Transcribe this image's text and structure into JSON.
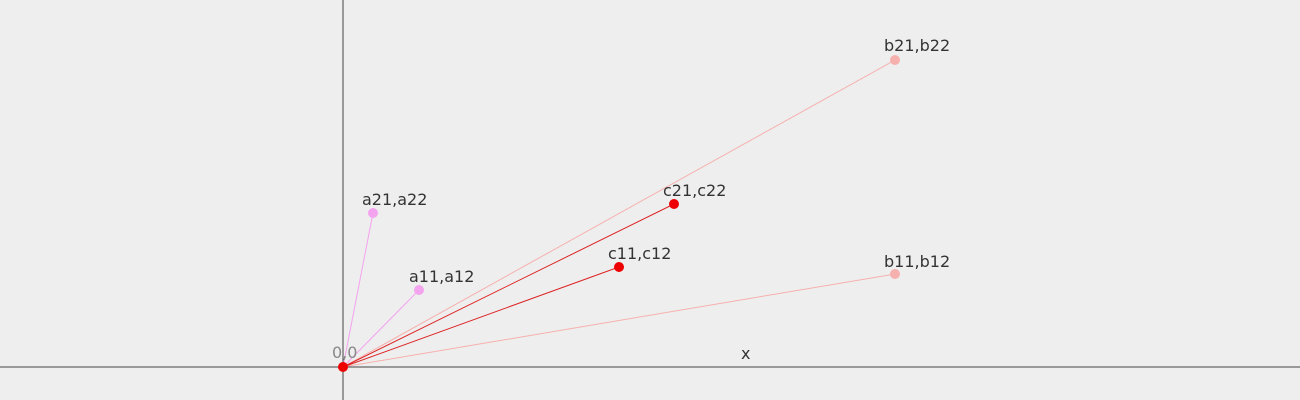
{
  "diagram": {
    "axis_x_label": "x",
    "origin_label": "0,0",
    "vectors": [
      {
        "id": "a1",
        "label": "a11,a12",
        "color": "#f4a3ef",
        "point_color": "#f4a3ef"
      },
      {
        "id": "a2",
        "label": "a21,a22",
        "color": "#f4a3ef",
        "point_color": "#f4a3ef"
      },
      {
        "id": "b1",
        "label": "b11,b12",
        "color": "#f6b0ad",
        "point_color": "#f6b0ad"
      },
      {
        "id": "b2",
        "label": "b21,b22",
        "color": "#f6b0ad",
        "point_color": "#f6b0ad"
      },
      {
        "id": "c1",
        "label": "c11,c12",
        "color": "#dd2222",
        "point_color": "#ee0000"
      },
      {
        "id": "c2",
        "label": "c21,c22",
        "color": "#dd2222",
        "point_color": "#ee0000"
      }
    ],
    "colors": {
      "background": "#eeeeee",
      "axis": "#444444",
      "origin_point": "#ee0000"
    }
  }
}
